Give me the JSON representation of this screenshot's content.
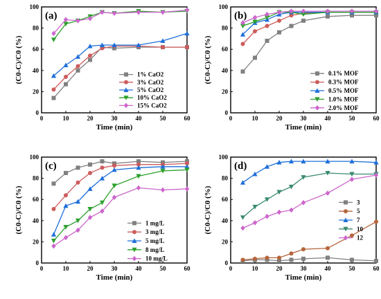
{
  "chart_data": [
    {
      "panel": "(a)",
      "type": "line",
      "xlabel": "Time (min)",
      "ylabel": "(C0-C)/C0 (%)",
      "xlim": [
        0,
        60
      ],
      "ylim": [
        0,
        100
      ],
      "xticks": [
        0,
        10,
        20,
        30,
        40,
        50,
        60
      ],
      "yticks": [
        0,
        20,
        40,
        60,
        80,
        100
      ],
      "legend_position": "bottom-right",
      "x": [
        5,
        10,
        15,
        20,
        25,
        30,
        40,
        50,
        60
      ],
      "series": [
        {
          "name": "1% CaO2",
          "color": "#808080",
          "marker": "square",
          "values": [
            14,
            27,
            40,
            50,
            62,
            61,
            62,
            62,
            62
          ]
        },
        {
          "name": "3% CaO2",
          "color": "#cd5c5c",
          "marker": "circle",
          "values": [
            22,
            34,
            44,
            54,
            61,
            63,
            63,
            62,
            62
          ]
        },
        {
          "name": "5% CaO2",
          "color": "#1e6fd9",
          "marker": "triangle",
          "values": [
            35,
            45,
            53,
            63,
            64,
            64,
            64,
            68,
            75
          ]
        },
        {
          "name": "10% CaO2",
          "color": "#2ca02c",
          "marker": "triangle-down",
          "values": [
            69,
            84,
            87,
            91,
            95,
            94,
            96,
            95,
            96
          ]
        },
        {
          "name": "15% CaO2",
          "color": "#cc66cc",
          "marker": "diamond",
          "values": [
            75,
            88,
            87,
            89,
            95,
            94,
            95,
            95,
            97
          ]
        }
      ]
    },
    {
      "panel": "(b)",
      "type": "line",
      "xlabel": "Time (min)",
      "ylabel": "(C0-C)/C0 (%)",
      "xlim": [
        0,
        60
      ],
      "ylim": [
        0,
        100
      ],
      "xticks": [
        0,
        10,
        20,
        30,
        40,
        50,
        60
      ],
      "yticks": [
        0,
        20,
        40,
        60,
        80,
        100
      ],
      "legend_position": "bottom-right",
      "x": [
        5,
        10,
        15,
        20,
        25,
        30,
        40,
        50,
        60
      ],
      "series": [
        {
          "name": "0.1% MOF",
          "color": "#808080",
          "marker": "square",
          "values": [
            39,
            52,
            68,
            76,
            82,
            87,
            91,
            92,
            92
          ]
        },
        {
          "name": "0.3% MOF",
          "color": "#cd5c5c",
          "marker": "circle",
          "values": [
            65,
            77,
            82,
            87,
            92,
            94,
            95,
            95,
            95
          ]
        },
        {
          "name": "0.5% MOF",
          "color": "#1e6fd9",
          "marker": "triangle",
          "values": [
            74,
            85,
            88,
            93,
            95,
            95,
            95,
            95,
            95
          ]
        },
        {
          "name": "1.0% MOF",
          "color": "#2ca02c",
          "marker": "triangle-down",
          "values": [
            82,
            86,
            90,
            95,
            95,
            93,
            95,
            95,
            95
          ]
        },
        {
          "name": "2.0% MOF",
          "color": "#cc66cc",
          "marker": "diamond",
          "values": [
            85,
            90,
            93,
            95,
            96,
            96,
            96,
            96,
            96
          ]
        }
      ]
    },
    {
      "panel": "(c)",
      "type": "line",
      "xlabel": "Time (min)",
      "ylabel": "(C0-C)/C0 (%)",
      "xlim": [
        0,
        60
      ],
      "ylim": [
        0,
        100
      ],
      "xticks": [
        0,
        10,
        20,
        30,
        40,
        50,
        60
      ],
      "yticks": [
        0,
        20,
        40,
        60,
        80,
        100
      ],
      "legend_position": "bottom-right",
      "x": [
        5,
        10,
        15,
        20,
        25,
        30,
        40,
        50,
        60
      ],
      "series": [
        {
          "name": "1 mg/L",
          "color": "#808080",
          "marker": "square",
          "values": [
            75,
            85,
            90,
            93,
            96,
            94,
            96,
            95,
            96
          ]
        },
        {
          "name": "3 mg/L",
          "color": "#cd5c5c",
          "marker": "circle",
          "values": [
            51,
            64,
            76,
            85,
            90,
            92,
            93,
            93,
            94
          ]
        },
        {
          "name": "5 mg/L",
          "color": "#1e6fd9",
          "marker": "triangle",
          "values": [
            27,
            54,
            58,
            70,
            80,
            88,
            90,
            91,
            91
          ]
        },
        {
          "name": "8 mg/L",
          "color": "#2ca02c",
          "marker": "triangle-down",
          "values": [
            21,
            34,
            40,
            51,
            57,
            73,
            82,
            87,
            88
          ]
        },
        {
          "name": "10 mg/L",
          "color": "#cc66cc",
          "marker": "diamond",
          "values": [
            16,
            24,
            31,
            43,
            49,
            62,
            71,
            69,
            70
          ]
        }
      ]
    },
    {
      "panel": "(d)",
      "type": "line",
      "xlabel": "Time (min)",
      "ylabel": "(C0-C)/C0 (%)",
      "xlim": [
        0,
        60
      ],
      "ylim": [
        0,
        100
      ],
      "xticks": [
        0,
        10,
        20,
        30,
        40,
        50,
        60
      ],
      "yticks": [
        0,
        20,
        40,
        60,
        80,
        100
      ],
      "legend_position": "center-right",
      "x": [
        5,
        10,
        15,
        20,
        25,
        30,
        40,
        50,
        60
      ],
      "series": [
        {
          "name": "3",
          "color": "#808080",
          "marker": "square",
          "values": [
            2,
            3,
            3,
            2,
            3,
            4,
            5,
            3,
            2
          ]
        },
        {
          "name": "5",
          "color": "#b5653b",
          "marker": "circle",
          "values": [
            3,
            4,
            5,
            5,
            9,
            13,
            14,
            26,
            39
          ]
        },
        {
          "name": "7",
          "color": "#1e6fd9",
          "marker": "triangle",
          "values": [
            76,
            84,
            91,
            95,
            96,
            96,
            96,
            96,
            95
          ]
        },
        {
          "name": "10",
          "color": "#3a8a6e",
          "marker": "triangle-down",
          "values": [
            43,
            53,
            60,
            67,
            72,
            81,
            85,
            84,
            84
          ]
        },
        {
          "name": "12",
          "color": "#cc66cc",
          "marker": "diamond",
          "values": [
            33,
            38,
            44,
            48,
            50,
            57,
            66,
            79,
            83
          ]
        }
      ]
    }
  ]
}
